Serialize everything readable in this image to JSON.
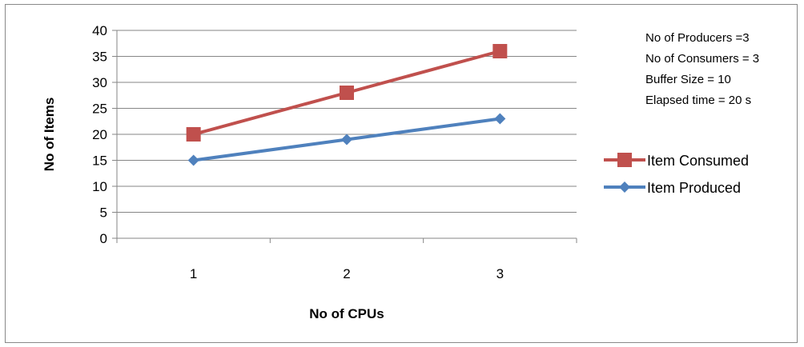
{
  "chart_data": {
    "type": "line",
    "categories": [
      "1",
      "2",
      "3"
    ],
    "series": [
      {
        "name": "Item Consumed",
        "values": [
          20,
          28,
          36
        ],
        "color": "#C0504D",
        "marker": "square"
      },
      {
        "name": "Item Produced",
        "values": [
          15,
          19,
          23
        ],
        "color": "#4F81BD",
        "marker": "diamond"
      }
    ],
    "xlabel": "No of CPUs",
    "ylabel": "No of Items",
    "ylim": [
      0,
      40
    ],
    "yticks": [
      0,
      5,
      10,
      15,
      20,
      25,
      30,
      35,
      40
    ],
    "grid": "horizontal",
    "legend_placement": "right",
    "annotations": [
      "No of Producers =3",
      "No of Consumers = 3",
      "Buffer Size = 10",
      "Elapsed time = 20 s"
    ]
  }
}
